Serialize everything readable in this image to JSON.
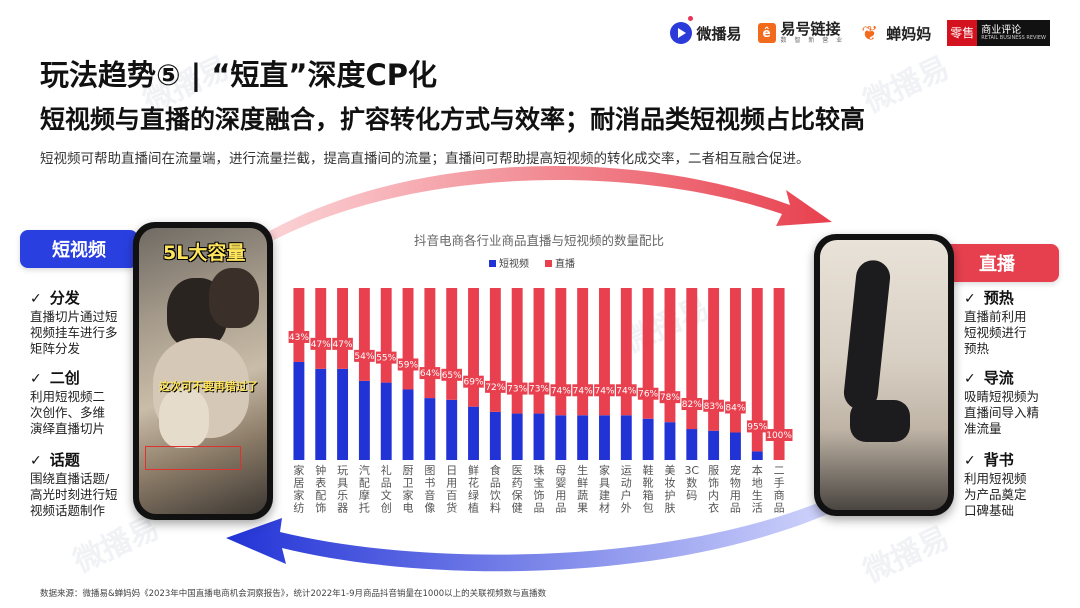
{
  "logos": {
    "weiboyi": "微播易",
    "yihao": "易号链接",
    "yihao_sub": "数 智 新 营 业",
    "chanmama": "蝉妈妈",
    "lingshou_red": "零售",
    "lingshou_black": "商业评论",
    "lingshou_en": "RETAIL BUSINESS REVIEW"
  },
  "title": "玩法趋势⑤ |  “短直”深度CP化",
  "subtitle": "短视频与直播的深度融合，扩容转化方式与效率；耐消品类短视频占比较高",
  "description": "短视频可帮助直播间在流量端，进行流量拦截，提高直播间的流量；直播间可帮助提高短视频的转化成交率，二者相互融合促进。",
  "watermark": "微播易",
  "left_panel": {
    "tag": "短视频",
    "features": [
      {
        "title": "分发",
        "text": [
          "直播切片通过短",
          "视频挂车进行多",
          "矩阵分发"
        ]
      },
      {
        "title": "二创",
        "text": [
          "利用短视频二",
          "次创作、多维",
          "演绎直播切片"
        ]
      },
      {
        "title": "话题",
        "text": [
          "围绕直播话题/",
          "高光时刻进行短",
          "视频话题制作"
        ]
      }
    ],
    "phone_caption_top": "5L大容量",
    "phone_caption_bottom": "这次可不要再错过了"
  },
  "right_panel": {
    "tag": "直播",
    "features": [
      {
        "title": "预热",
        "text": [
          "直播前利用",
          "短视频进行",
          "预热"
        ]
      },
      {
        "title": "导流",
        "text": [
          "吸睛短视频为",
          "直播间导入精",
          "准流量"
        ]
      },
      {
        "title": "背书",
        "text": [
          "利用短视频",
          "为产品奠定",
          "口碑基础"
        ]
      }
    ]
  },
  "check_mark": "✓",
  "chart_data": {
    "type": "bar",
    "stacked": true,
    "title": "抖音电商各行业商品直播与短视频的数量配比",
    "categories": [
      "家居家纺",
      "钟表配饰",
      "玩具乐器",
      "汽配摩托",
      "礼品文创",
      "厨卫家电",
      "图书音像",
      "日用百货",
      "鲜花绿植",
      "食品饮料",
      "医药保健",
      "珠宝饰品",
      "母婴用品",
      "生鲜蔬果",
      "家具建材",
      "运动户外",
      "鞋靴箱包",
      "美妆护肤",
      "3C数码",
      "服饰内衣",
      "宠物用品",
      "本地生活",
      "二手商品"
    ],
    "series": [
      {
        "name": "短视频",
        "color": "#2233d6",
        "values": [
          57,
          53,
          53,
          46,
          45,
          41,
          36,
          35,
          31,
          28,
          27,
          27,
          26,
          26,
          26,
          26,
          24,
          22,
          18,
          17,
          16,
          5,
          0
        ]
      },
      {
        "name": "直播",
        "color": "#e8404e",
        "values": [
          43,
          47,
          47,
          54,
          55,
          59,
          64,
          65,
          69,
          72,
          73,
          73,
          74,
          74,
          74,
          74,
          76,
          78,
          82,
          83,
          84,
          95,
          100
        ]
      }
    ],
    "data_labels": [
      "43%",
      "47%",
      "47%",
      "54%",
      "55%",
      "59%",
      "64%",
      "65%",
      "69%",
      "72%",
      "73%",
      "73%",
      "74%",
      "74%",
      "74%",
      "74%",
      "76%",
      "78%",
      "82%",
      "83%",
      "84%",
      "95%",
      "100%"
    ],
    "legend_position": "top-center",
    "ylim": [
      0,
      100
    ],
    "grid": false
  },
  "footer": "数据来源：微播易&蝉妈妈《2023年中国直播电商机会洞察报告》，统计2022年1-9月商品抖音销量在1000以上的关联视频数与直播数"
}
